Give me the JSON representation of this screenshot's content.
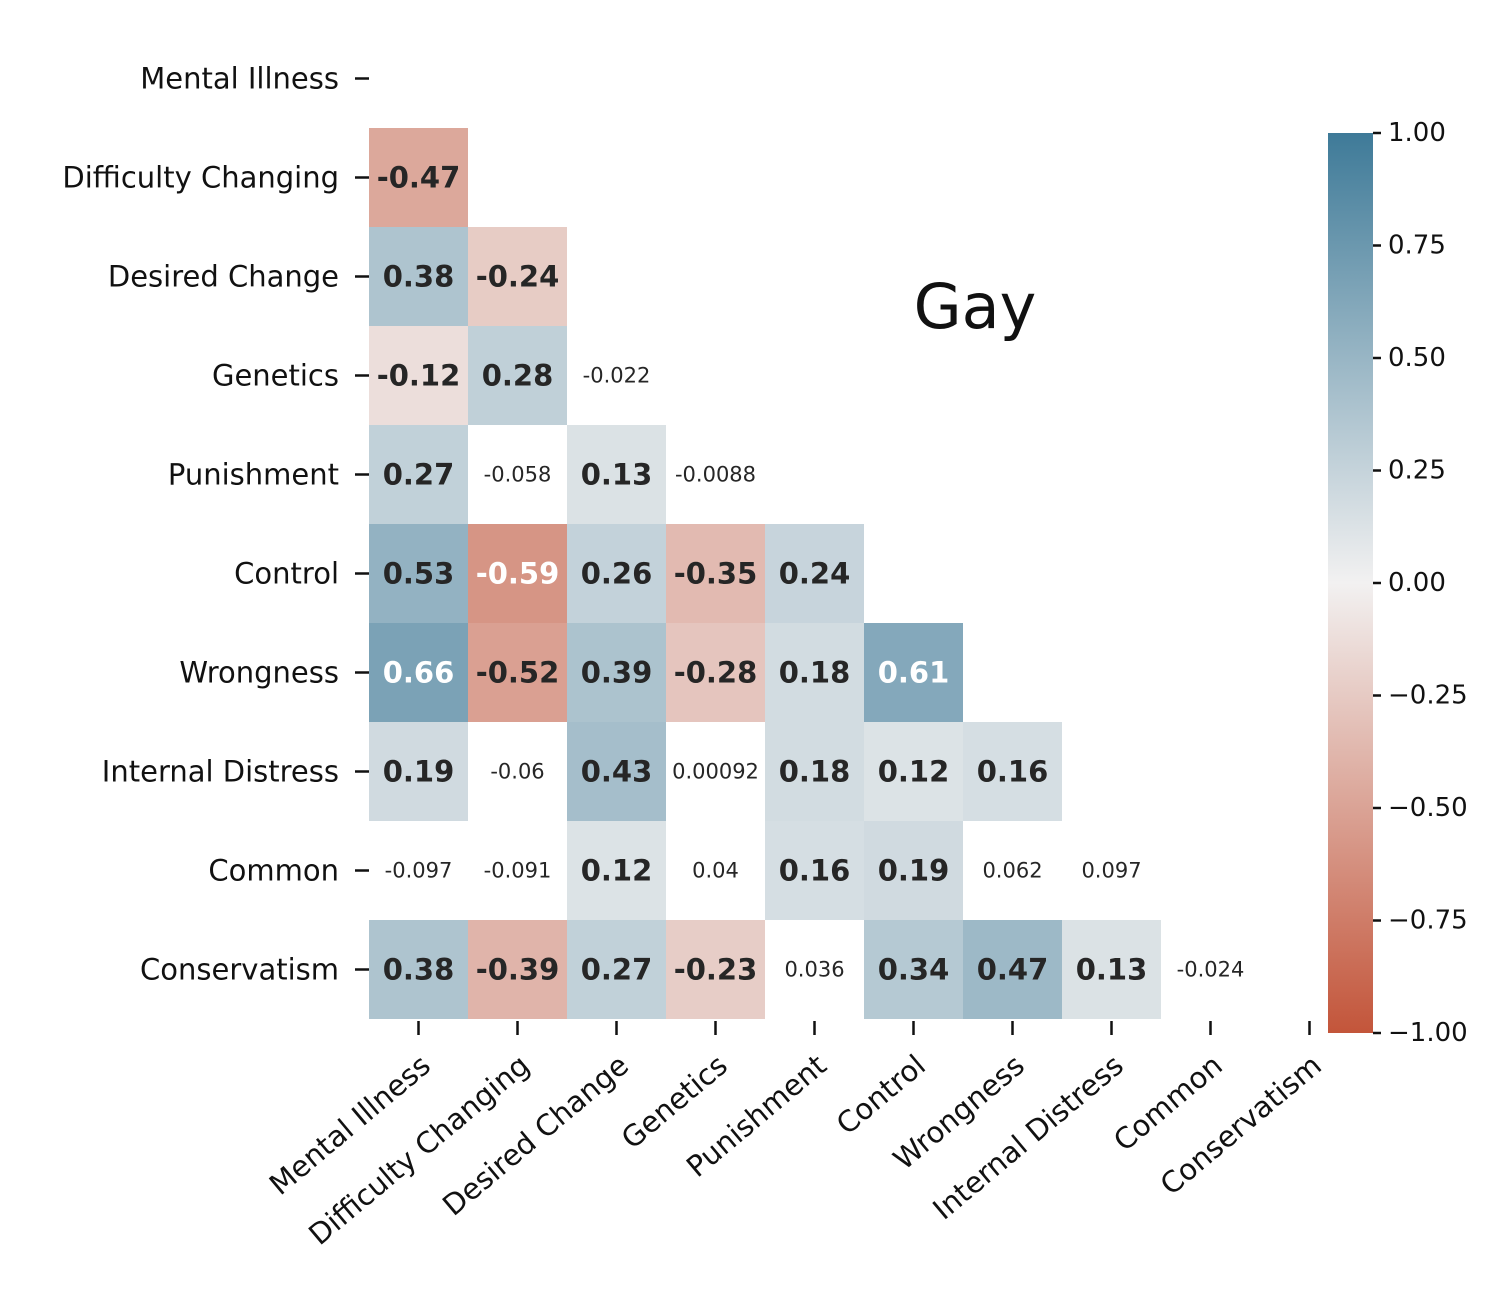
{
  "chart_data": {
    "type": "heatmap",
    "title": "Gay",
    "variables": [
      "Mental Illness",
      "Difficulty Changing",
      "Desired Change",
      "Genetics",
      "Punishment",
      "Control",
      "Wrongness",
      "Internal Distress",
      "Common",
      "Conservatism"
    ],
    "lower_triangle": [
      [],
      [
        -0.47
      ],
      [
        0.38,
        -0.24
      ],
      [
        -0.12,
        0.28,
        -0.022
      ],
      [
        0.27,
        -0.058,
        0.13,
        -0.0088
      ],
      [
        0.53,
        -0.59,
        0.26,
        -0.35,
        0.24
      ],
      [
        0.66,
        -0.52,
        0.39,
        -0.28,
        0.18,
        0.61
      ],
      [
        0.19,
        -0.06,
        0.43,
        0.00092,
        0.18,
        0.12,
        0.16
      ],
      [
        -0.097,
        -0.091,
        0.12,
        0.04,
        0.16,
        0.19,
        0.062,
        0.097
      ],
      [
        0.38,
        -0.39,
        0.27,
        -0.23,
        0.036,
        0.34,
        0.47,
        0.13,
        -0.024
      ]
    ],
    "value_labels": [
      [],
      [
        "-0.47"
      ],
      [
        "0.38",
        "-0.24"
      ],
      [
        "-0.12",
        "0.28",
        "-0.022"
      ],
      [
        "0.27",
        "-0.058",
        "0.13",
        "-0.0088"
      ],
      [
        "0.53",
        "-0.59",
        "0.26",
        "-0.35",
        "0.24"
      ],
      [
        "0.66",
        "-0.52",
        "0.39",
        "-0.28",
        "0.18",
        "0.61"
      ],
      [
        "0.19",
        "-0.06",
        "0.43",
        "0.00092",
        "0.18",
        "0.12",
        "0.16"
      ],
      [
        "-0.097",
        "-0.091",
        "0.12",
        "0.04",
        "0.16",
        "0.19",
        "0.062",
        "0.097"
      ],
      [
        "0.38",
        "-0.39",
        "0.27",
        "-0.23",
        "0.036",
        "0.34",
        "0.47",
        "0.13",
        "-0.024"
      ]
    ],
    "mask_below_abs": 0.1,
    "colorscale": {
      "range": [
        -1.0,
        1.0
      ],
      "negative_color": "#c3553a",
      "neutral_color": "#f2f1f1",
      "positive_color": "#3e7a98",
      "ticks": [
        1.0,
        0.75,
        0.5,
        0.25,
        0.0,
        -0.25,
        -0.5,
        -0.75,
        -1.0
      ],
      "tick_labels": [
        "1.00",
        "0.75",
        "0.50",
        "0.25",
        "0.00",
        "−0.25",
        "−0.50",
        "−0.75",
        "−1.00"
      ]
    }
  }
}
